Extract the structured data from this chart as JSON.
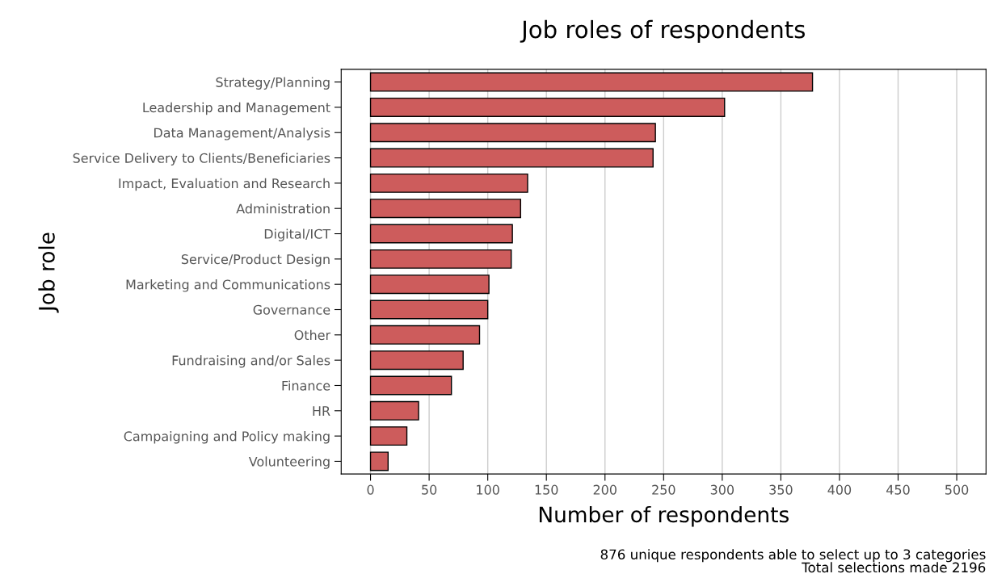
{
  "chart_data": {
    "type": "bar",
    "orientation": "horizontal",
    "title": "Job roles of respondents",
    "xlabel": "Number of respondents",
    "ylabel": "Job role",
    "categories": [
      "Strategy/Planning",
      "Leadership and Management",
      "Data Management/Analysis",
      "Service Delivery to Clients/Beneficiaries",
      "Impact, Evaluation and Research",
      "Administration",
      "Digital/ICT",
      "Service/Product Design",
      "Marketing and Communications",
      "Governance",
      "Other",
      "Fundraising and/or Sales",
      "Finance",
      "HR",
      "Campaigning and Policy making",
      "Volunteering"
    ],
    "values": [
      377,
      302,
      243,
      241,
      134,
      128,
      121,
      120,
      101,
      100,
      93,
      79,
      69,
      41,
      31,
      15
    ],
    "color": "#cd5c5c",
    "xlim": [
      -25,
      525
    ],
    "xticks": [
      0,
      50,
      100,
      150,
      200,
      250,
      300,
      350,
      400,
      450,
      500
    ],
    "grid": "x",
    "annotations": [
      "876 unique respondents able to select up to 3 categories\nTotal selections made 2196"
    ]
  }
}
